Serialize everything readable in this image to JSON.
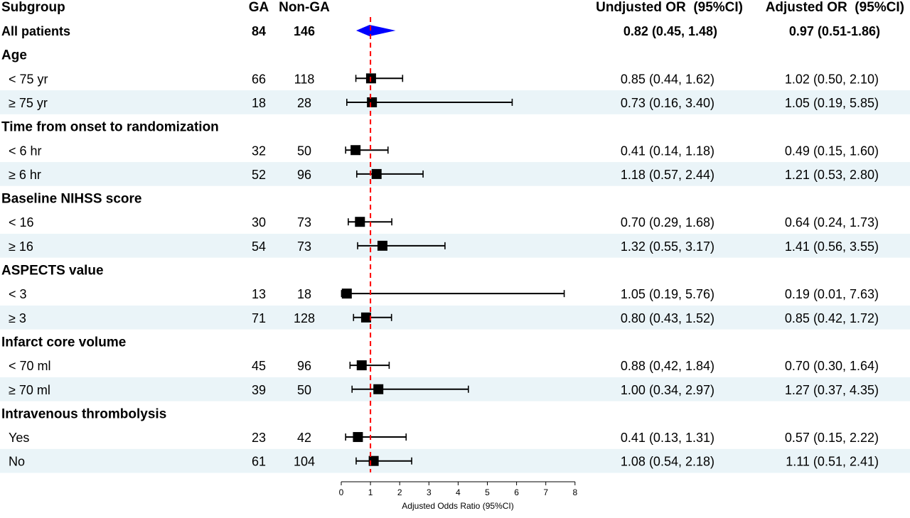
{
  "chart_data": {
    "type": "forest",
    "columns": {
      "subgroup": "Subgroup",
      "ga": "GA",
      "nonga": "Non-GA",
      "unadjusted": "Undjusted OR  (95%CI)",
      "adjusted": "Adjusted OR  (95%CI)"
    },
    "xlabel": "Adjusted Odds Ratio (95%CI)",
    "xlim": [
      0,
      8
    ],
    "xticks": [
      "0",
      "1",
      "2",
      "3",
      "4",
      "5",
      "6",
      "7",
      "8"
    ],
    "reference_line": 1,
    "colors": {
      "summary": "#0000ff",
      "reference": "#ff0000",
      "shade": "#eaf4f8"
    },
    "rows": [
      {
        "kind": "overall",
        "label": "All patients",
        "ga": "84",
        "nonga": "146",
        "unadj": "0.82 (0.45, 1.48)",
        "adj": "0.97 (0.51-1.86)",
        "or": 0.97,
        "lo": 0.51,
        "hi": 1.86,
        "shaded": false
      },
      {
        "kind": "group",
        "label": "Age"
      },
      {
        "kind": "sub",
        "label": "< 75 yr",
        "ga": "66",
        "nonga": "118",
        "unadj": "0.85 (0.44, 1.62)",
        "adj": "1.02 (0.50, 2.10)",
        "or": 1.02,
        "lo": 0.5,
        "hi": 2.1,
        "shaded": false
      },
      {
        "kind": "sub",
        "label": "≥ 75 yr",
        "ga": "18",
        "nonga": "28",
        "unadj": "0.73 (0.16, 3.40)",
        "adj": "1.05 (0.19, 5.85)",
        "or": 1.05,
        "lo": 0.19,
        "hi": 5.85,
        "shaded": true
      },
      {
        "kind": "group",
        "label": "Time from onset to randomization"
      },
      {
        "kind": "sub",
        "label": "< 6 hr",
        "ga": "32",
        "nonga": "50",
        "unadj": "0.41 (0.14, 1.18)",
        "adj": "0.49 (0.15, 1.60)",
        "or": 0.49,
        "lo": 0.15,
        "hi": 1.6,
        "shaded": false
      },
      {
        "kind": "sub",
        "label": "≥ 6 hr",
        "ga": "52",
        "nonga": "96",
        "unadj": "1.18 (0.57, 2.44)",
        "adj": "1.21 (0.53, 2.80)",
        "or": 1.21,
        "lo": 0.53,
        "hi": 2.8,
        "shaded": true
      },
      {
        "kind": "group",
        "label": "Baseline NIHSS score"
      },
      {
        "kind": "sub",
        "label": "< 16",
        "ga": "30",
        "nonga": "73",
        "unadj": "0.70 (0.29, 1.68)",
        "adj": "0.64 (0.24, 1.73)",
        "or": 0.64,
        "lo": 0.24,
        "hi": 1.73,
        "shaded": false
      },
      {
        "kind": "sub",
        "label": "≥ 16",
        "ga": "54",
        "nonga": "73",
        "unadj": "1.32 (0.55, 3.17)",
        "adj": "1.41 (0.56, 3.55)",
        "or": 1.41,
        "lo": 0.56,
        "hi": 3.55,
        "shaded": true
      },
      {
        "kind": "group",
        "label": "ASPECTS value"
      },
      {
        "kind": "sub",
        "label": "< 3",
        "ga": "13",
        "nonga": "18",
        "unadj": "1.05 (0.19, 5.76)",
        "adj": "0.19 (0.01, 7.63)",
        "or": 0.19,
        "lo": 0.01,
        "hi": 7.63,
        "shaded": false
      },
      {
        "kind": "sub",
        "label": "≥ 3",
        "ga": "71",
        "nonga": "128",
        "unadj": "0.80 (0.43, 1.52)",
        "adj": "0.85 (0.42, 1.72)",
        "or": 0.85,
        "lo": 0.42,
        "hi": 1.72,
        "shaded": true
      },
      {
        "kind": "group",
        "label": "Infarct core volume"
      },
      {
        "kind": "sub",
        "label": "< 70 ml",
        "ga": "45",
        "nonga": "96",
        "unadj": "0.88 (0,42, 1.84)",
        "adj": "0.70 (0.30, 1.64)",
        "or": 0.7,
        "lo": 0.3,
        "hi": 1.64,
        "shaded": false
      },
      {
        "kind": "sub",
        "label": "≥ 70 ml",
        "ga": "39",
        "nonga": "50",
        "unadj": "1.00 (0.34, 2.97)",
        "adj": "1.27 (0.37, 4.35)",
        "or": 1.27,
        "lo": 0.37,
        "hi": 4.35,
        "shaded": true
      },
      {
        "kind": "group",
        "label": "Intravenous thrombolysis"
      },
      {
        "kind": "sub",
        "label": "Yes",
        "ga": "23",
        "nonga": "42",
        "unadj": "0.41 (0.13, 1.31)",
        "adj": "0.57 (0.15, 2.22)",
        "or": 0.57,
        "lo": 0.15,
        "hi": 2.22,
        "shaded": false
      },
      {
        "kind": "sub",
        "label": "No",
        "ga": "61",
        "nonga": "104",
        "unadj": "1.08 (0.54, 2.18)",
        "adj": "1.11 (0.51, 2.41)",
        "or": 1.11,
        "lo": 0.51,
        "hi": 2.41,
        "shaded": true
      }
    ]
  }
}
